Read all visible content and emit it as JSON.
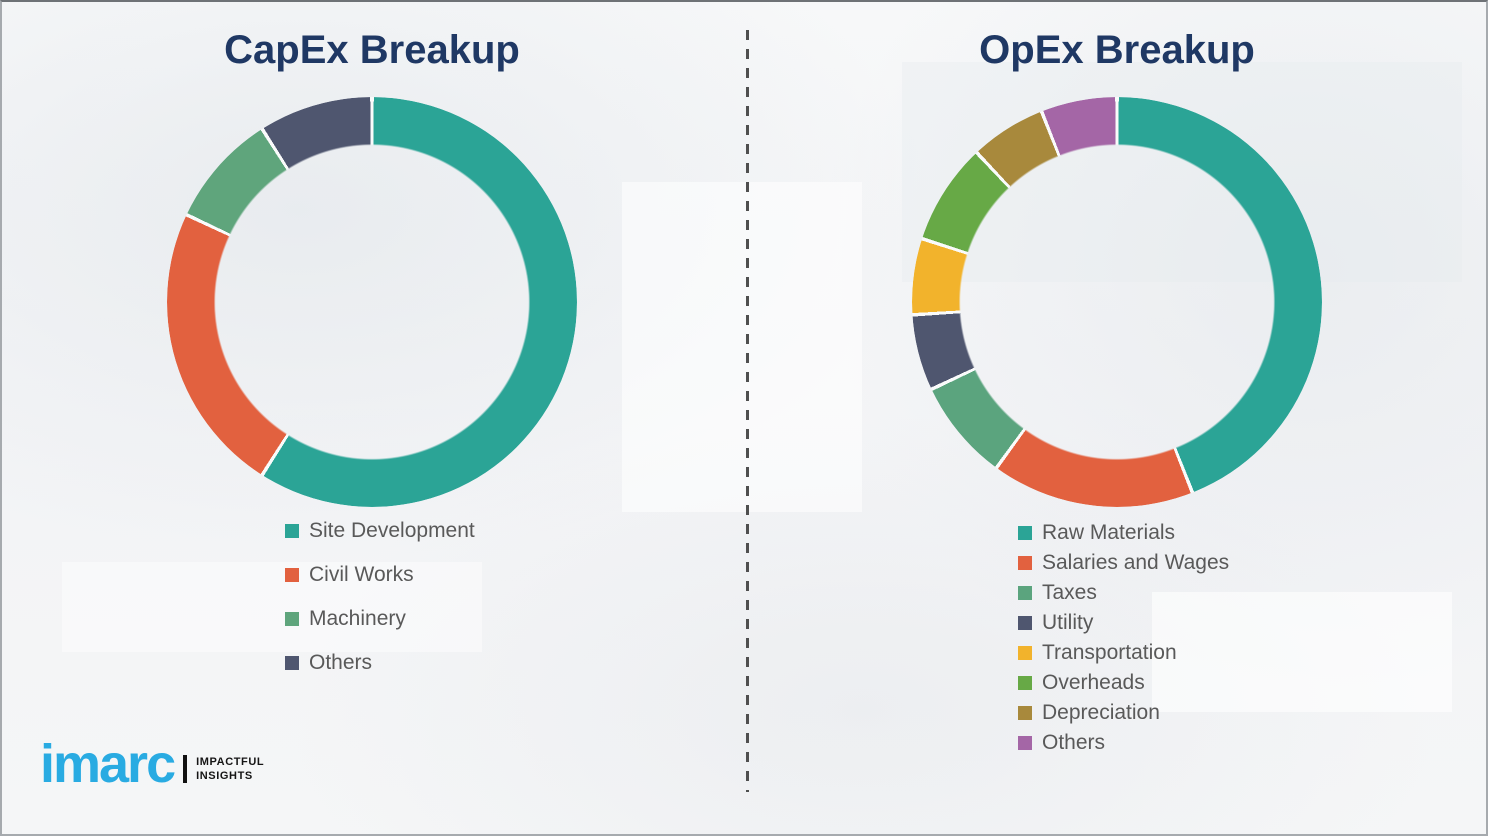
{
  "chart_data": [
    {
      "type": "pie",
      "subtype": "donut",
      "title": "CapEx Breakup",
      "categories": [
        "Site Development",
        "Civil Works",
        "Machinery",
        "Others"
      ],
      "values": [
        59,
        23,
        9,
        9
      ],
      "values_are_estimated_percent": true,
      "colors": [
        "#2ba496",
        "#e2613f",
        "#5fa57c",
        "#4f566f"
      ],
      "start_angle_deg": 0,
      "direction": "clockwise",
      "legend_position": "below-left",
      "data_labels_shown": false
    },
    {
      "type": "pie",
      "subtype": "donut",
      "title": "OpEx Breakup",
      "categories": [
        "Raw Materials",
        "Salaries and Wages",
        "Taxes",
        "Utility",
        "Transportation",
        "Overheads",
        "Depreciation",
        "Others"
      ],
      "values": [
        44,
        16,
        8,
        6,
        6,
        8,
        6,
        6
      ],
      "values_are_estimated_percent": true,
      "colors": [
        "#2ba496",
        "#e2613f",
        "#5ba47e",
        "#4f566f",
        "#f2b32c",
        "#67a946",
        "#a8893c",
        "#a466a6"
      ],
      "start_angle_deg": 0,
      "direction": "clockwise",
      "legend_position": "below-left",
      "data_labels_shown": false
    }
  ],
  "logo": {
    "brand": "imarc",
    "tagline_lines": [
      "IMPACTFUL",
      "INSIGHTS"
    ],
    "brand_color": "#29abe2"
  },
  "styles": {
    "title_color": "#1f3864",
    "legend_text_color": "#595959",
    "divider_color": "#4f4f4f",
    "segment_gap_color": "#fafbfb"
  }
}
